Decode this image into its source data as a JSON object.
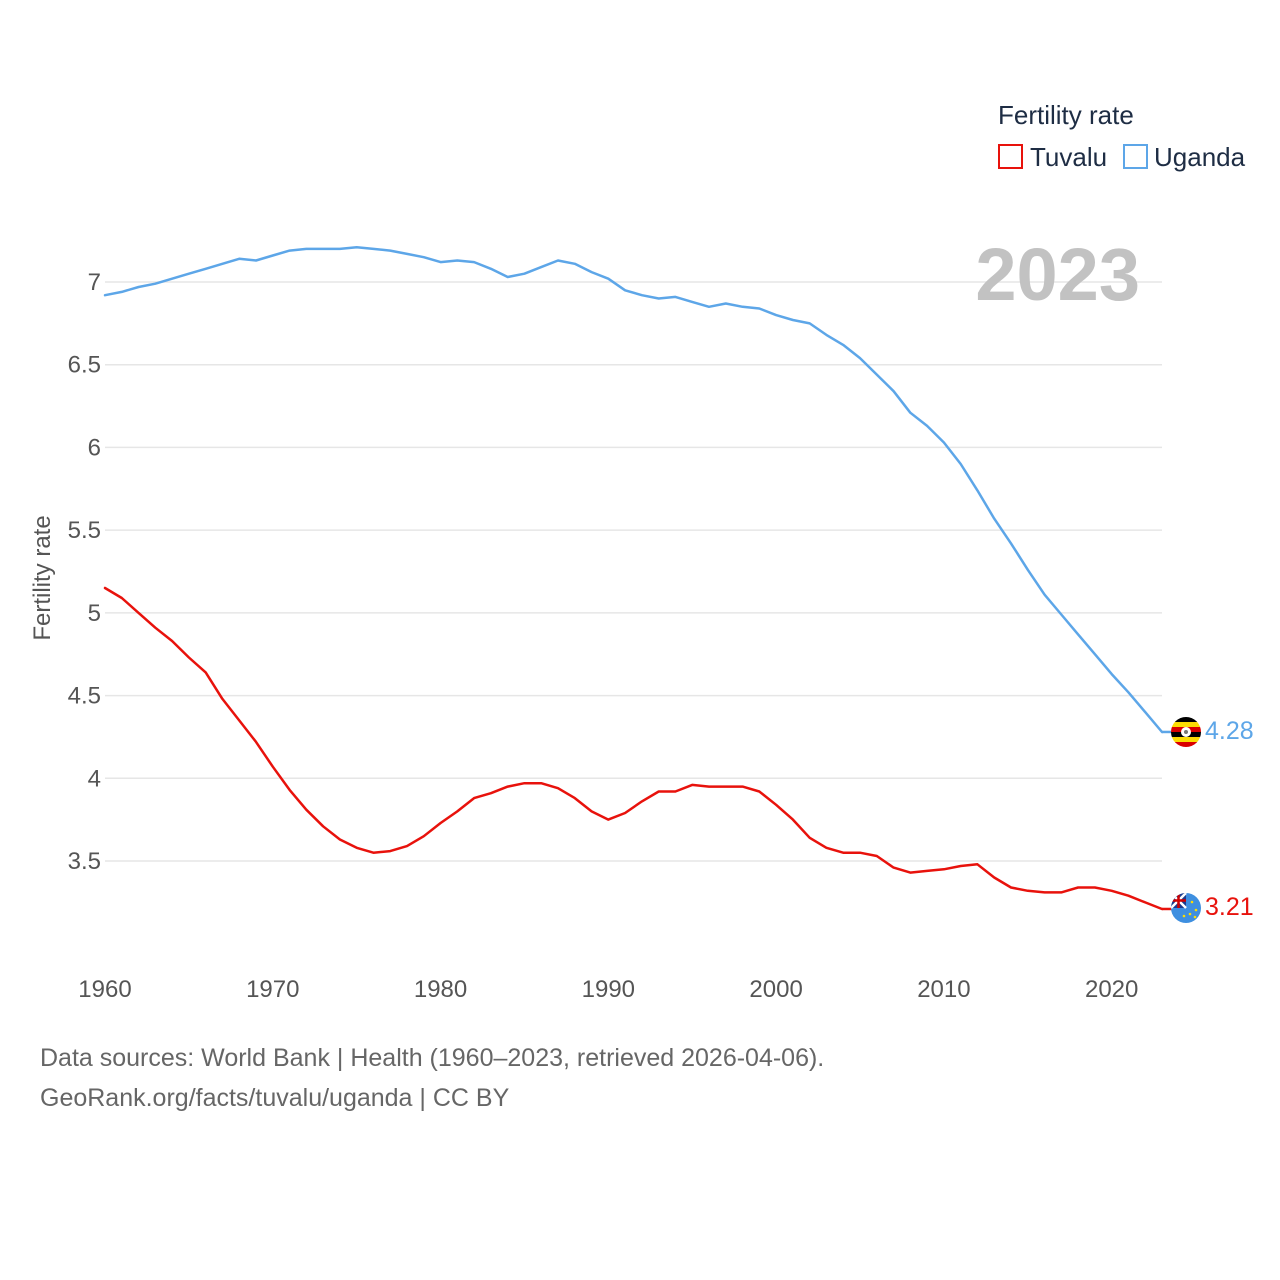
{
  "chart_data": {
    "type": "line",
    "title": "",
    "xlabel": "",
    "ylabel": "Fertility rate",
    "xlim": [
      1960,
      2023
    ],
    "ylim": [
      3.0,
      7.3
    ],
    "x_ticks": [
      1960,
      1970,
      1980,
      1990,
      2000,
      2010,
      2020
    ],
    "y_ticks": [
      3.5,
      4,
      4.5,
      5,
      5.5,
      6,
      6.5,
      7
    ],
    "y_tick_labels": [
      "3.5",
      "4",
      "4.5",
      "5",
      "5.5",
      "6",
      "6.5",
      "7"
    ],
    "grid": true,
    "legend_title": "Fertility rate",
    "legend_position": "top-right",
    "current_year": "2023",
    "x": [
      1960,
      1961,
      1962,
      1963,
      1964,
      1965,
      1966,
      1967,
      1968,
      1969,
      1970,
      1971,
      1972,
      1973,
      1974,
      1975,
      1976,
      1977,
      1978,
      1979,
      1980,
      1981,
      1982,
      1983,
      1984,
      1985,
      1986,
      1987,
      1988,
      1989,
      1990,
      1991,
      1992,
      1993,
      1994,
      1995,
      1996,
      1997,
      1998,
      1999,
      2000,
      2001,
      2002,
      2003,
      2004,
      2005,
      2006,
      2007,
      2008,
      2009,
      2010,
      2011,
      2012,
      2013,
      2014,
      2015,
      2016,
      2017,
      2018,
      2019,
      2020,
      2021,
      2022,
      2023
    ],
    "series": [
      {
        "name": "Tuvalu",
        "color": "#e8120c",
        "end_label": "3.21",
        "values": [
          5.15,
          5.09,
          5.0,
          4.91,
          4.83,
          4.73,
          4.64,
          4.48,
          4.35,
          4.22,
          4.07,
          3.93,
          3.81,
          3.71,
          3.63,
          3.58,
          3.55,
          3.56,
          3.59,
          3.65,
          3.73,
          3.8,
          3.88,
          3.91,
          3.95,
          3.97,
          3.97,
          3.94,
          3.88,
          3.8,
          3.75,
          3.79,
          3.86,
          3.92,
          3.92,
          3.96,
          3.95,
          3.95,
          3.95,
          3.92,
          3.84,
          3.75,
          3.64,
          3.58,
          3.55,
          3.55,
          3.53,
          3.46,
          3.43,
          3.44,
          3.45,
          3.47,
          3.48,
          3.4,
          3.34,
          3.32,
          3.31,
          3.31,
          3.34,
          3.34,
          3.32,
          3.29,
          3.25,
          3.21
        ]
      },
      {
        "name": "Uganda",
        "color": "#5da6e8",
        "end_label": "4.28",
        "values": [
          6.92,
          6.94,
          6.97,
          6.99,
          7.02,
          7.05,
          7.08,
          7.11,
          7.14,
          7.13,
          7.16,
          7.19,
          7.2,
          7.2,
          7.2,
          7.21,
          7.2,
          7.19,
          7.17,
          7.15,
          7.12,
          7.13,
          7.12,
          7.08,
          7.03,
          7.05,
          7.09,
          7.13,
          7.11,
          7.06,
          7.02,
          6.95,
          6.92,
          6.9,
          6.91,
          6.88,
          6.85,
          6.87,
          6.85,
          6.84,
          6.8,
          6.77,
          6.75,
          6.68,
          6.62,
          6.54,
          6.44,
          6.34,
          6.21,
          6.13,
          6.03,
          5.9,
          5.74,
          5.57,
          5.42,
          5.26,
          5.11,
          4.99,
          4.87,
          4.75,
          4.63,
          4.52,
          4.4,
          4.28
        ]
      }
    ]
  },
  "footer": {
    "line1": "Data sources: World Bank | Health (1960–2023, retrieved 2026-04-06).",
    "line2": "GeoRank.org/facts/tuvalu/uganda | CC BY"
  }
}
